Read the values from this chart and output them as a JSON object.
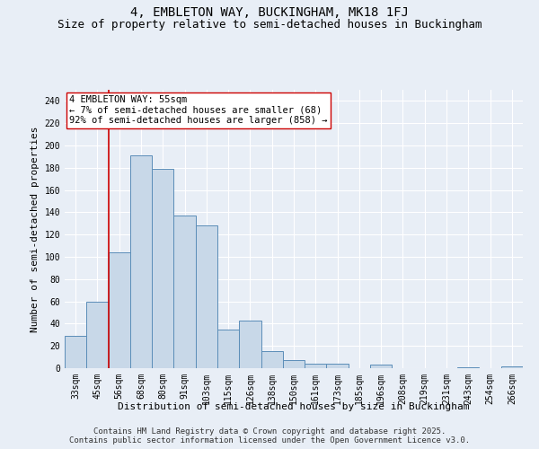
{
  "title": "4, EMBLETON WAY, BUCKINGHAM, MK18 1FJ",
  "subtitle": "Size of property relative to semi-detached houses in Buckingham",
  "xlabel": "Distribution of semi-detached houses by size in Buckingham",
  "ylabel": "Number of semi-detached properties",
  "categories": [
    "33sqm",
    "45sqm",
    "56sqm",
    "68sqm",
    "80sqm",
    "91sqm",
    "103sqm",
    "115sqm",
    "126sqm",
    "138sqm",
    "150sqm",
    "161sqm",
    "173sqm",
    "185sqm",
    "196sqm",
    "208sqm",
    "219sqm",
    "231sqm",
    "243sqm",
    "254sqm",
    "266sqm"
  ],
  "values": [
    29,
    60,
    104,
    191,
    179,
    137,
    128,
    35,
    43,
    15,
    7,
    4,
    4,
    0,
    3,
    0,
    0,
    0,
    1,
    0,
    2
  ],
  "bar_color": "#c8d8e8",
  "bar_edge_color": "#5b8db8",
  "red_line_index": 1.5,
  "annotation_title": "4 EMBLETON WAY: 55sqm",
  "annotation_line1": "← 7% of semi-detached houses are smaller (68)",
  "annotation_line2": "92% of semi-detached houses are larger (858) →",
  "red_line_color": "#cc0000",
  "ylim": [
    0,
    250
  ],
  "yticks": [
    0,
    20,
    40,
    60,
    80,
    100,
    120,
    140,
    160,
    180,
    200,
    220,
    240
  ],
  "footer_line1": "Contains HM Land Registry data © Crown copyright and database right 2025.",
  "footer_line2": "Contains public sector information licensed under the Open Government Licence v3.0.",
  "bg_color": "#e8eef6",
  "plot_bg_color": "#e8eef6",
  "title_fontsize": 10,
  "subtitle_fontsize": 9,
  "axis_label_fontsize": 8,
  "tick_fontsize": 7,
  "footer_fontsize": 6.5,
  "annotation_fontsize": 7.5
}
